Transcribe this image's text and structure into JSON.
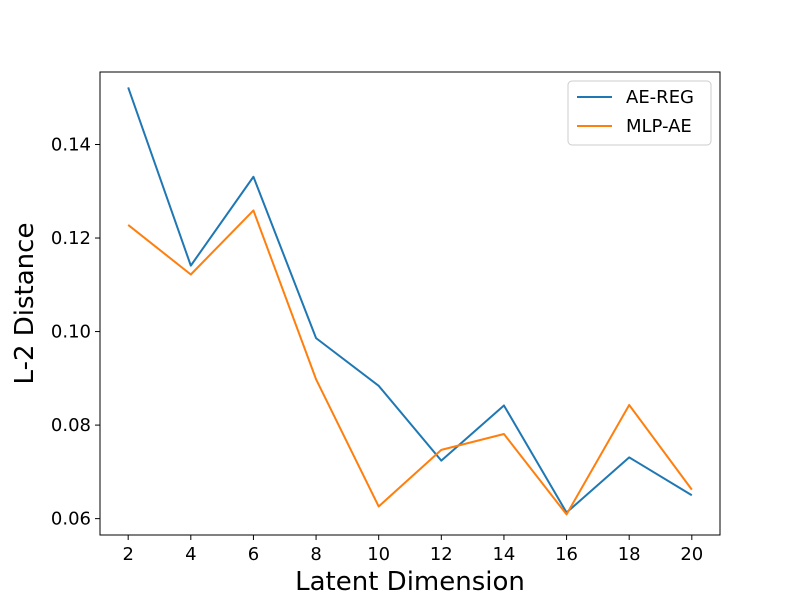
{
  "chart_data": {
    "type": "line",
    "title": "",
    "xlabel": "Latent Dimension",
    "ylabel": "L-2 Distance",
    "x": [
      2,
      4,
      6,
      8,
      10,
      12,
      14,
      16,
      18,
      20
    ],
    "xticks": [
      "2",
      "4",
      "6",
      "8",
      "10",
      "12",
      "14",
      "16",
      "18",
      "20"
    ],
    "yticks": [
      "0.06",
      "0.08",
      "0.10",
      "0.12",
      "0.14"
    ],
    "ytick_values": [
      0.06,
      0.08,
      0.1,
      0.12,
      0.14
    ],
    "xlim": [
      1.1,
      20.9
    ],
    "ylim": [
      0.0565,
      0.1555
    ],
    "grid": false,
    "legend_position": "top-right",
    "series": [
      {
        "name": "AE-REG",
        "color": "#1f77b4",
        "values": [
          0.1522,
          0.1141,
          0.1331,
          0.0986,
          0.0884,
          0.0724,
          0.0842,
          0.0613,
          0.0731,
          0.065
        ]
      },
      {
        "name": "MLP-AE",
        "color": "#ff7f0e",
        "values": [
          0.1228,
          0.1122,
          0.1259,
          0.0898,
          0.0626,
          0.0747,
          0.0781,
          0.0609,
          0.0843,
          0.0662
        ]
      }
    ]
  }
}
